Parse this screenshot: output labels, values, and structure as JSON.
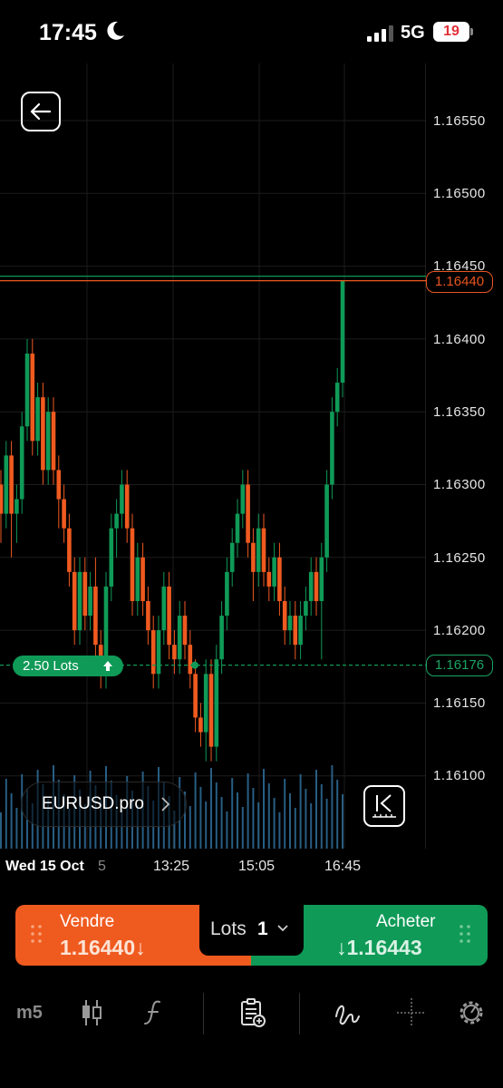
{
  "status_bar": {
    "time": "17:45",
    "network": "5G",
    "battery": "19"
  },
  "chart": {
    "price_axis": [
      "1.16550",
      "1.16500",
      "1.16450",
      "1.16400",
      "1.16350",
      "1.16300",
      "1.16250",
      "1.16200",
      "1.16150",
      "1.16100"
    ],
    "current_price": "1.16440",
    "position_price": "1.16176",
    "position_label": "2.50 Lots",
    "symbol": "EURUSD.pro",
    "date_label": "Wed 15 Oct",
    "time_axis": [
      "13:25",
      "15:05",
      "16:45"
    ],
    "time_axis_fragment": "5",
    "colors": {
      "up": "#0f9a57",
      "down": "#ef5a1f",
      "volume": "#2f6f9a",
      "grid": "#1c1c1c"
    }
  },
  "chart_data": {
    "type": "candlestick",
    "ylim": [
      1.1606,
      1.1657
    ],
    "candles": [
      [
        1.163,
        1.1631,
        1.1626,
        1.1628
      ],
      [
        1.1628,
        1.1633,
        1.1627,
        1.1632
      ],
      [
        1.1632,
        1.1633,
        1.1625,
        1.1628
      ],
      [
        1.1628,
        1.163,
        1.1626,
        1.1629
      ],
      [
        1.1629,
        1.1635,
        1.1628,
        1.1634
      ],
      [
        1.1634,
        1.164,
        1.1633,
        1.1639
      ],
      [
        1.1639,
        1.164,
        1.1632,
        1.1633
      ],
      [
        1.1633,
        1.1637,
        1.1632,
        1.1636
      ],
      [
        1.1636,
        1.1637,
        1.163,
        1.1631
      ],
      [
        1.1631,
        1.1636,
        1.163,
        1.1635
      ],
      [
        1.1635,
        1.1636,
        1.163,
        1.1631
      ],
      [
        1.1631,
        1.1632,
        1.1627,
        1.1629
      ],
      [
        1.1629,
        1.163,
        1.1626,
        1.1627
      ],
      [
        1.1627,
        1.1628,
        1.1623,
        1.1624
      ],
      [
        1.1624,
        1.1625,
        1.1619,
        1.162
      ],
      [
        1.162,
        1.1625,
        1.1619,
        1.1624
      ],
      [
        1.1624,
        1.1625,
        1.162,
        1.1621
      ],
      [
        1.1621,
        1.1624,
        1.162,
        1.1623
      ],
      [
        1.1623,
        1.1625,
        1.1618,
        1.1619
      ],
      [
        1.1619,
        1.162,
        1.1616,
        1.1617
      ],
      [
        1.1617,
        1.1624,
        1.1616,
        1.1623
      ],
      [
        1.1623,
        1.1628,
        1.1622,
        1.1627
      ],
      [
        1.1627,
        1.1629,
        1.1625,
        1.1628
      ],
      [
        1.1628,
        1.1631,
        1.1627,
        1.163
      ],
      [
        1.163,
        1.1631,
        1.1626,
        1.1627
      ],
      [
        1.1627,
        1.1628,
        1.1621,
        1.1622
      ],
      [
        1.1622,
        1.1626,
        1.1621,
        1.1625
      ],
      [
        1.1625,
        1.1626,
        1.1621,
        1.1622
      ],
      [
        1.1622,
        1.1623,
        1.1619,
        1.162
      ],
      [
        1.162,
        1.1621,
        1.1616,
        1.1617
      ],
      [
        1.1617,
        1.1621,
        1.1616,
        1.162
      ],
      [
        1.162,
        1.1624,
        1.1619,
        1.1623
      ],
      [
        1.1623,
        1.1624,
        1.1618,
        1.1619
      ],
      [
        1.1619,
        1.162,
        1.1617,
        1.1618
      ],
      [
        1.1618,
        1.1622,
        1.1617,
        1.1621
      ],
      [
        1.1621,
        1.1622,
        1.1618,
        1.1619
      ],
      [
        1.1619,
        1.162,
        1.1616,
        1.1617
      ],
      [
        1.1617,
        1.1618,
        1.1613,
        1.1614
      ],
      [
        1.1614,
        1.1615,
        1.1612,
        1.1613
      ],
      [
        1.1613,
        1.1618,
        1.1611,
        1.1617
      ],
      [
        1.1617,
        1.1618,
        1.1611,
        1.1612
      ],
      [
        1.1612,
        1.1619,
        1.1611,
        1.1618
      ],
      [
        1.1618,
        1.1622,
        1.1617,
        1.1621
      ],
      [
        1.1621,
        1.1625,
        1.162,
        1.1624
      ],
      [
        1.1624,
        1.1627,
        1.1623,
        1.1626
      ],
      [
        1.1626,
        1.1629,
        1.1625,
        1.1628
      ],
      [
        1.1628,
        1.1631,
        1.1627,
        1.163
      ],
      [
        1.163,
        1.1631,
        1.1625,
        1.1626
      ],
      [
        1.1626,
        1.1627,
        1.1622,
        1.1624
      ],
      [
        1.1624,
        1.1628,
        1.1623,
        1.1627
      ],
      [
        1.1627,
        1.1628,
        1.1623,
        1.1624
      ],
      [
        1.1624,
        1.1625,
        1.1622,
        1.1623
      ],
      [
        1.1623,
        1.1626,
        1.1622,
        1.1625
      ],
      [
        1.1625,
        1.1626,
        1.1621,
        1.1622
      ],
      [
        1.1622,
        1.1623,
        1.1619,
        1.162
      ],
      [
        1.162,
        1.1622,
        1.1619,
        1.1621
      ],
      [
        1.1621,
        1.1622,
        1.1618,
        1.1619
      ],
      [
        1.1619,
        1.1622,
        1.1618,
        1.1621
      ],
      [
        1.1621,
        1.1623,
        1.162,
        1.1622
      ],
      [
        1.1622,
        1.1625,
        1.1621,
        1.1624
      ],
      [
        1.1624,
        1.1625,
        1.1621,
        1.1622
      ],
      [
        1.1622,
        1.1626,
        1.1618,
        1.1625
      ],
      [
        1.1625,
        1.1631,
        1.1624,
        1.163
      ],
      [
        1.163,
        1.1636,
        1.1629,
        1.1635
      ],
      [
        1.1635,
        1.1638,
        1.1634,
        1.1637
      ],
      [
        1.1637,
        1.1644,
        1.1636,
        1.1644
      ]
    ]
  },
  "trade_bar": {
    "sell_label": "Vendre",
    "sell_price": "1.16440↓",
    "buy_label": "Acheter",
    "buy_price": "↓1.16443",
    "lots_label": "Lots",
    "lots_value": "1"
  },
  "toolbar": {
    "timeframe": "m5"
  }
}
